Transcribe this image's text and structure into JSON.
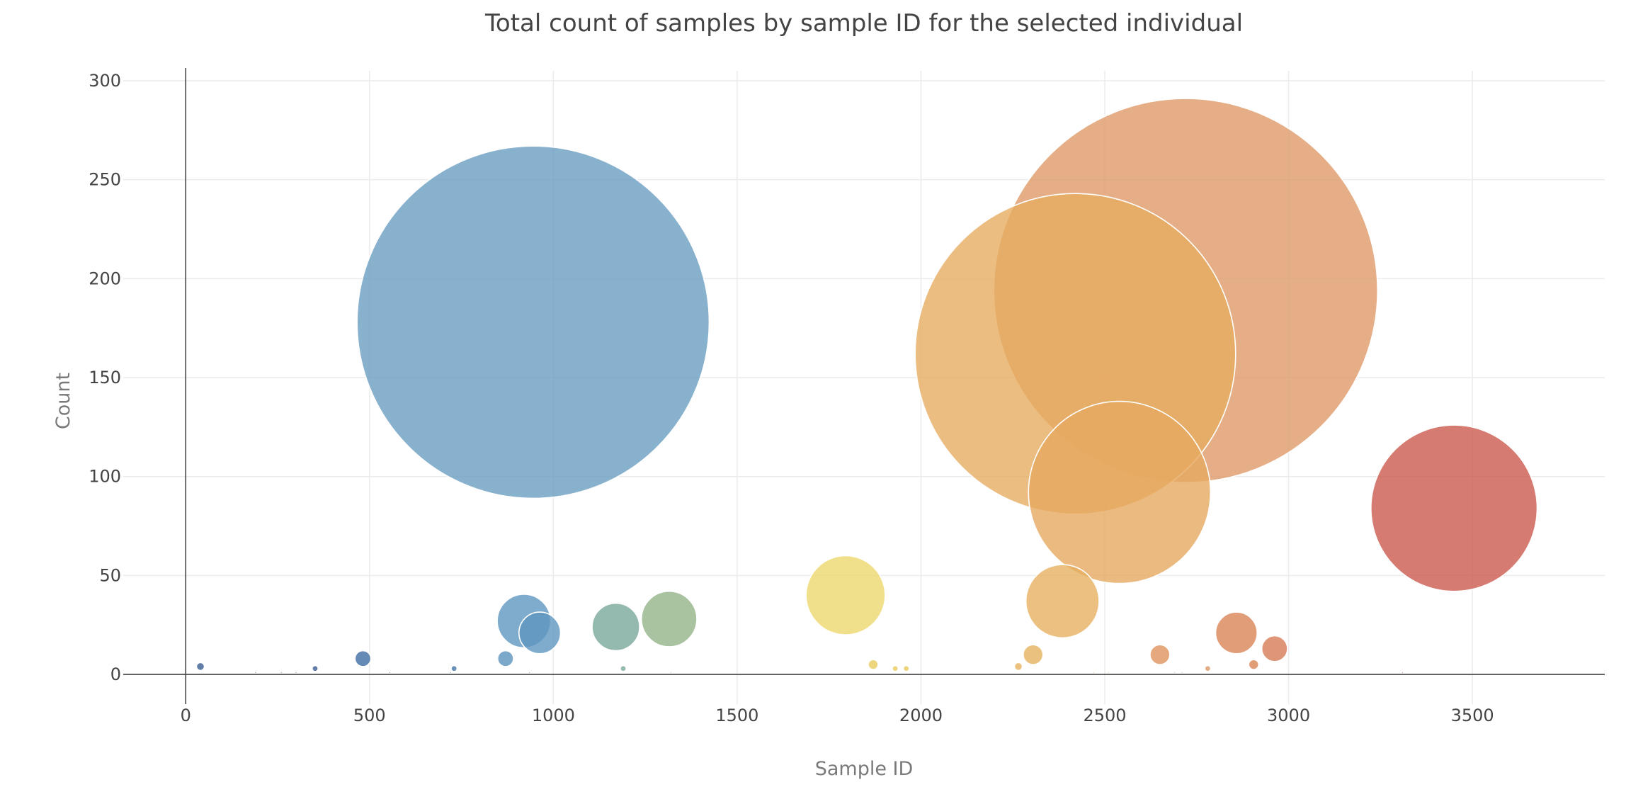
{
  "chart_data": {
    "type": "scatter",
    "title": "Total count of samples by sample ID for the selected individual",
    "xlabel": "Sample ID",
    "ylabel": "Count",
    "xlim": [
      -170,
      3860
    ],
    "ylim": [
      -15,
      305
    ],
    "xticks": [
      0,
      500,
      1000,
      1500,
      2000,
      2500,
      3000,
      3500
    ],
    "yticks": [
      0,
      50,
      100,
      150,
      200,
      250,
      300
    ],
    "grid": true,
    "legend": "none",
    "points": [
      {
        "x": 40,
        "y": 4,
        "color": "#3b5b92"
      },
      {
        "x": 190,
        "y": 1,
        "color": "#3b5b92"
      },
      {
        "x": 260,
        "y": 1,
        "color": "#3b5b92"
      },
      {
        "x": 300,
        "y": 1,
        "color": "#3b5b92"
      },
      {
        "x": 352,
        "y": 3,
        "color": "#3b5b92"
      },
      {
        "x": 482,
        "y": 8,
        "color": "#3f6da3"
      },
      {
        "x": 555,
        "y": 1,
        "color": "#3f6da3"
      },
      {
        "x": 720,
        "y": 1,
        "color": "#4474a8"
      },
      {
        "x": 730,
        "y": 3,
        "color": "#4474a8"
      },
      {
        "x": 870,
        "y": 8,
        "color": "#5b93bd"
      },
      {
        "x": 935,
        "y": 1,
        "color": "#5b93bd"
      },
      {
        "x": 920,
        "y": 27,
        "color": "#5f97c1"
      },
      {
        "x": 945,
        "y": 178,
        "color": "#6a9ec1"
      },
      {
        "x": 963,
        "y": 21,
        "color": "#5f97c1"
      },
      {
        "x": 1170,
        "y": 24,
        "color": "#79a89a"
      },
      {
        "x": 1190,
        "y": 3,
        "color": "#79a89a"
      },
      {
        "x": 1315,
        "y": 28,
        "color": "#93b489"
      },
      {
        "x": 1320,
        "y": 1,
        "color": "#93b489"
      },
      {
        "x": 1795,
        "y": 40,
        "color": "#eed86e"
      },
      {
        "x": 1870,
        "y": 5,
        "color": "#e8cb5c"
      },
      {
        "x": 1930,
        "y": 3,
        "color": "#e8cb5c"
      },
      {
        "x": 1960,
        "y": 3,
        "color": "#e8cb5c"
      },
      {
        "x": 2265,
        "y": 4,
        "color": "#e6b35c"
      },
      {
        "x": 2305,
        "y": 10,
        "color": "#e6b35c"
      },
      {
        "x": 2385,
        "y": 37,
        "color": "#e6b060"
      },
      {
        "x": 2420,
        "y": 162,
        "color": "#e6ad62"
      },
      {
        "x": 2470,
        "y": 1,
        "color": "#e6ad62"
      },
      {
        "x": 2510,
        "y": 1,
        "color": "#e6ad62"
      },
      {
        "x": 2540,
        "y": 92,
        "color": "#e6a960"
      },
      {
        "x": 2650,
        "y": 10,
        "color": "#e0945e"
      },
      {
        "x": 2720,
        "y": 194,
        "color": "#df9a68"
      },
      {
        "x": 2690,
        "y": 1,
        "color": "#df9a68"
      },
      {
        "x": 2710,
        "y": 1,
        "color": "#df9a68"
      },
      {
        "x": 2780,
        "y": 3,
        "color": "#df9a68"
      },
      {
        "x": 2858,
        "y": 21,
        "color": "#d98456"
      },
      {
        "x": 2905,
        "y": 5,
        "color": "#d98456"
      },
      {
        "x": 2962,
        "y": 13,
        "color": "#d77a55"
      },
      {
        "x": 3310,
        "y": 1,
        "color": "#cc5a4f"
      },
      {
        "x": 3450,
        "y": 84,
        "color": "#cc5a4f"
      }
    ]
  }
}
